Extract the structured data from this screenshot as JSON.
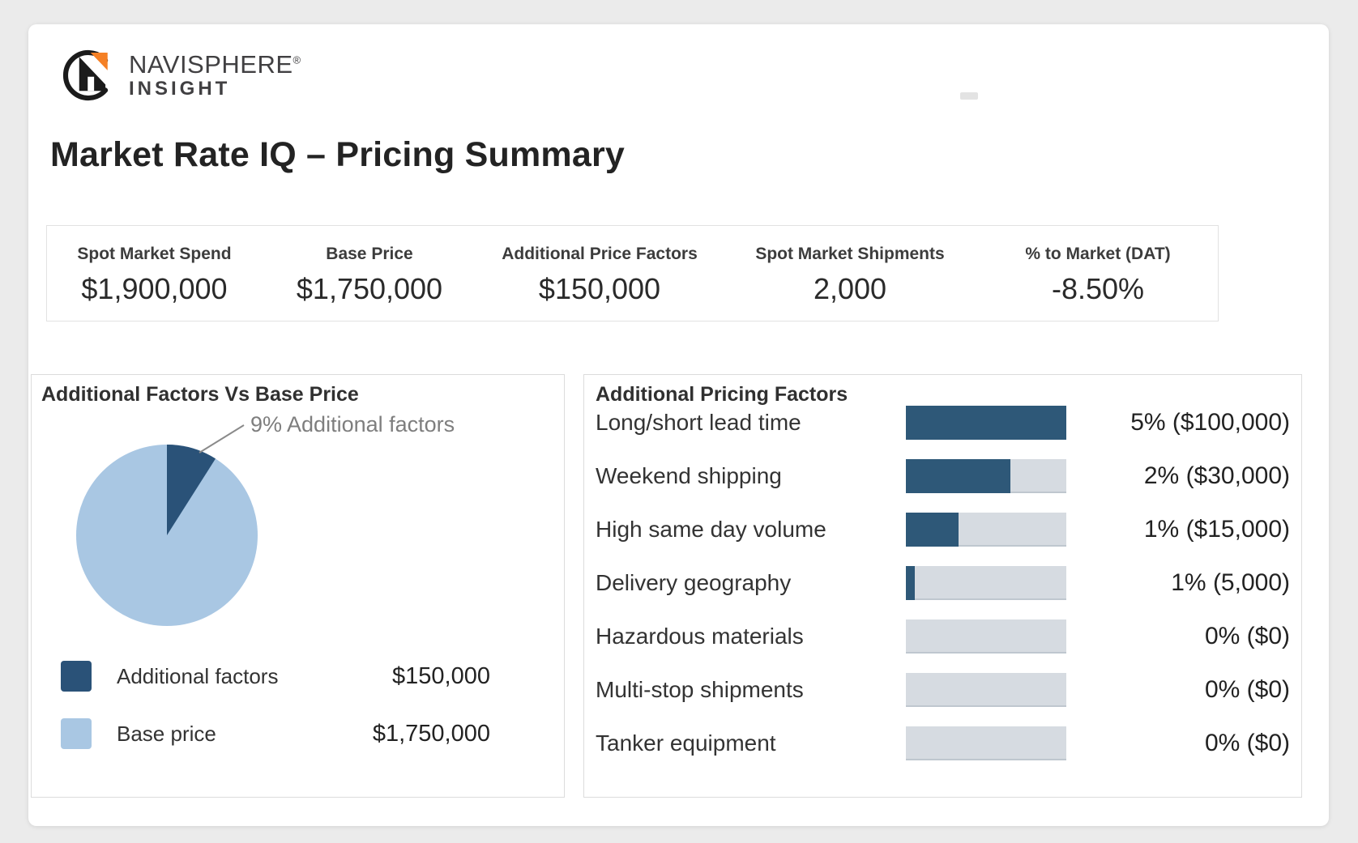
{
  "brand": {
    "name": "NAVISPHERE",
    "registered": "®",
    "sub": "INSIGHT",
    "accent_color": "#f58025",
    "mark_color": "#1b1b1b"
  },
  "page_title": "Market Rate IQ – Pricing Summary",
  "kpis": [
    {
      "label": "Spot Market Spend",
      "value": "$1,900,000"
    },
    {
      "label": "Base Price",
      "value": "$1,750,000"
    },
    {
      "label": "Additional Price Factors",
      "value": "$150,000"
    },
    {
      "label": "Spot Market Shipments",
      "value": "2,000"
    },
    {
      "label": "% to Market (DAT)",
      "value": "-8.50%"
    }
  ],
  "pie_panel": {
    "title": "Additional Factors Vs Base Price",
    "callout": "9% Additional factors",
    "legend": [
      {
        "label": "Additional factors",
        "value": "$150,000"
      },
      {
        "label": "Base price",
        "value": "$1,750,000"
      }
    ]
  },
  "bar_panel": {
    "title": "Additional Pricing Factors",
    "rows": [
      {
        "label": "Long/short lead time",
        "value": "5% ($100,000)",
        "fill": 1.0
      },
      {
        "label": "Weekend shipping",
        "value": "2% ($30,000)",
        "fill": 0.65
      },
      {
        "label": "High same day volume",
        "value": "1% ($15,000)",
        "fill": 0.33
      },
      {
        "label": "Delivery geography",
        "value": "1% (5,000)",
        "fill": 0.055
      },
      {
        "label": "Hazardous materials",
        "value": "0% ($0)",
        "fill": 0
      },
      {
        "label": "Multi-stop shipments",
        "value": "0% ($0)",
        "fill": 0
      },
      {
        "label": "Tanker equipment",
        "value": "0% ($0)",
        "fill": 0
      }
    ]
  },
  "chart_data": [
    {
      "type": "pie",
      "title": "Additional Factors Vs Base Price",
      "labels": [
        "Additional factors",
        "Base price"
      ],
      "values": [
        150000,
        1750000
      ],
      "percents": [
        9,
        91
      ],
      "colors": [
        "#2a5278",
        "#a9c7e3"
      ],
      "annotation": "9% Additional factors",
      "legend_position": "bottom"
    },
    {
      "type": "bar",
      "orientation": "horizontal",
      "title": "Additional Pricing Factors",
      "categories": [
        "Long/short lead time",
        "Weekend shipping",
        "High same day volume",
        "Delivery geography",
        "Hazardous materials",
        "Multi-stop shipments",
        "Tanker equipment"
      ],
      "series": [
        {
          "name": "percent_of_base",
          "values": [
            5,
            2,
            1,
            1,
            0,
            0,
            0
          ]
        },
        {
          "name": "dollars",
          "values": [
            100000,
            30000,
            15000,
            5000,
            0,
            0,
            0
          ]
        }
      ],
      "value_labels": [
        "5% ($100,000)",
        "2% ($30,000)",
        "1% ($15,000)",
        "1% (5,000)",
        "0% ($0)",
        "0% ($0)",
        "0% ($0)"
      ],
      "bar_fill_fractions": [
        1.0,
        0.65,
        0.33,
        0.055,
        0,
        0,
        0
      ],
      "grid": false,
      "legend_position": "none"
    }
  ],
  "colors": {
    "navy": "#2e5878",
    "pie_dark": "#2a5278",
    "pie_light": "#a9c7e3",
    "bar_track": "#d6dbe1",
    "panel_border": "#dcdcdc",
    "page_background": "#ebebeb"
  }
}
